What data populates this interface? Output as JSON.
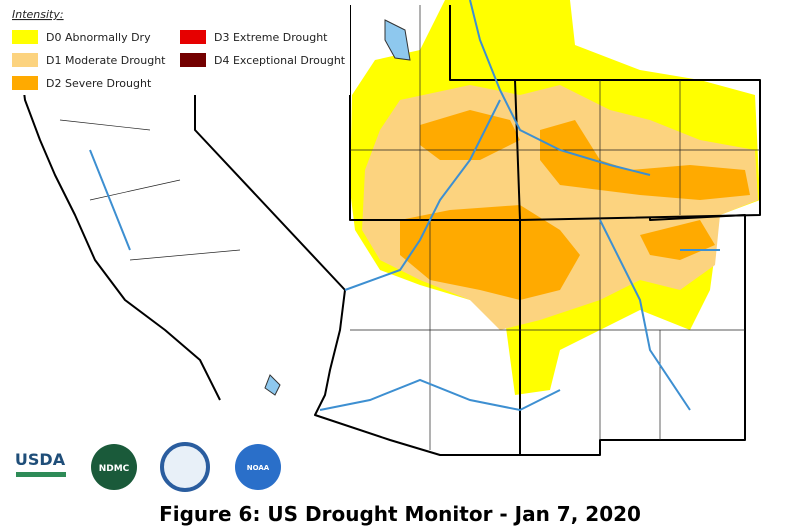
{
  "legend": {
    "title": "Intensity:",
    "items": [
      {
        "label": "D0 Abnormally Dry",
        "color": "#ffff00"
      },
      {
        "label": "D1 Moderate Drought",
        "color": "#fcd37f"
      },
      {
        "label": "D2 Severe Drought",
        "color": "#ffaa00"
      },
      {
        "label": "D3 Extreme Drought",
        "color": "#e60000"
      },
      {
        "label": "D4 Exceptional Drought",
        "color": "#730000"
      }
    ]
  },
  "logos": [
    "USDA",
    "NDMC",
    "NOAA"
  ],
  "caption": "Figure 6: US Drought Monitor - Jan 7, 2020"
}
